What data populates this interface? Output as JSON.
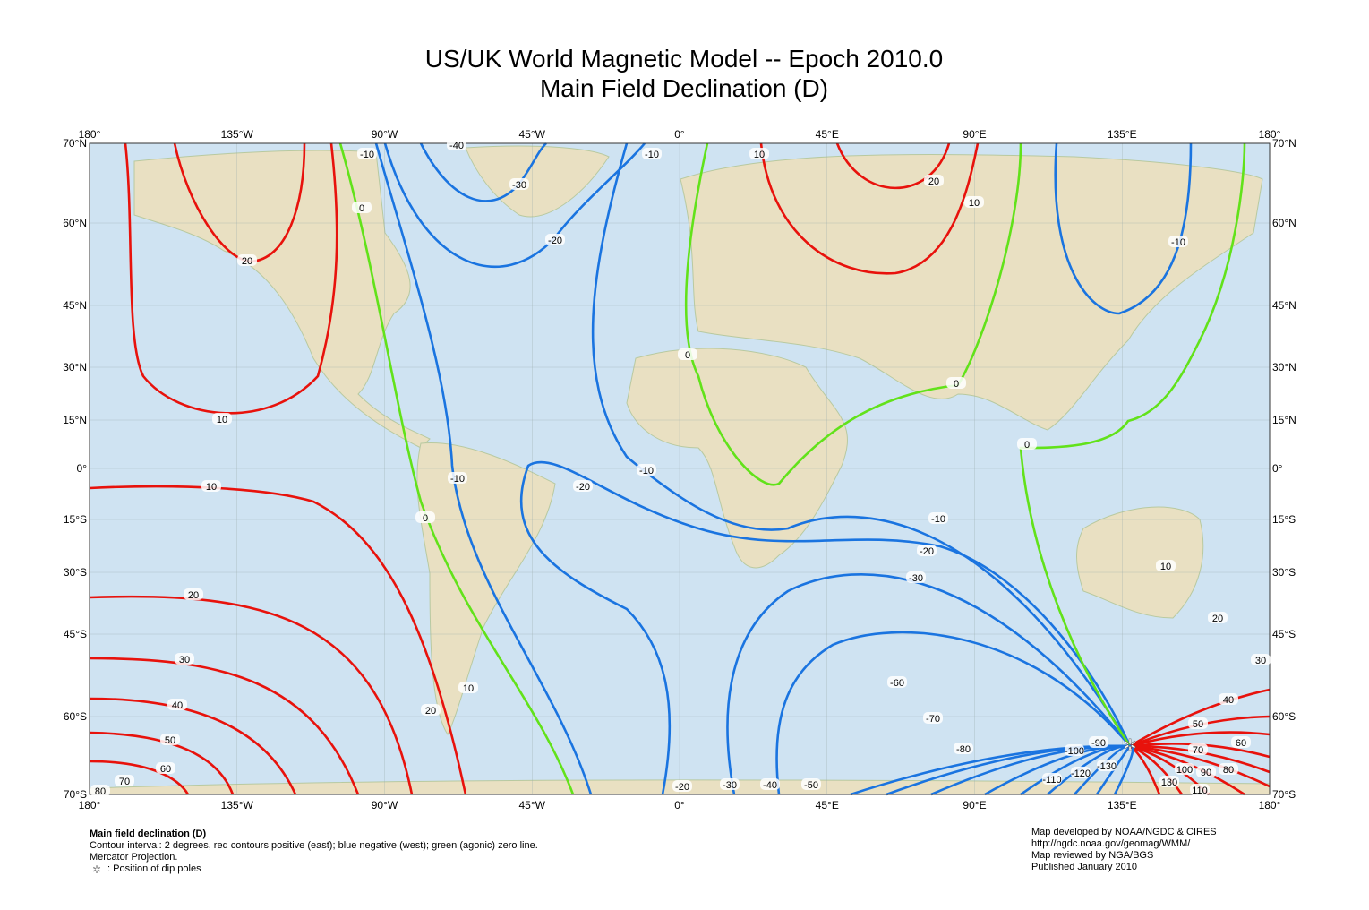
{
  "header": {
    "title": "US/UK World Magnetic Model -- Epoch 2010.0",
    "subtitle": "Main Field Declination (D)"
  },
  "map": {
    "lon_labels": [
      "180°",
      "135°W",
      "90°W",
      "45°W",
      "0°",
      "45°E",
      "90°E",
      "135°E",
      "180°"
    ],
    "lat_labels": [
      "70°N",
      "60°N",
      "45°N",
      "30°N",
      "15°N",
      "0°",
      "15°S",
      "30°S",
      "45°S",
      "60°S",
      "70°S"
    ],
    "contour_labels": [
      20,
      10,
      10,
      20,
      30,
      40,
      50,
      60,
      70,
      80,
      -10,
      0,
      -40,
      -30,
      -20,
      -10,
      10,
      20,
      10,
      -10,
      0,
      0,
      0,
      -10,
      0,
      -20,
      -10,
      -10,
      -20,
      -30,
      -60,
      -70,
      -80,
      -90,
      -100,
      -110,
      -120,
      -130,
      10,
      20,
      30,
      40,
      50,
      60,
      70,
      80,
      90,
      100,
      110,
      130,
      10,
      20,
      -20,
      -30,
      -40,
      -50
    ]
  },
  "footer": {
    "left": [
      "Main field declination (D)",
      "Contour interval: 2 degrees, red contours positive (east); blue negative (west); green (agonic) zero line.",
      "Mercator Projection.",
      ": Position of dip poles"
    ],
    "right": [
      "Map developed by NOAA/NGDC & CIRES",
      "http://ngdc.noaa.gov/geomag/WMM/",
      "Map reviewed by NGA/BGS",
      "Published January 2010"
    ]
  }
}
